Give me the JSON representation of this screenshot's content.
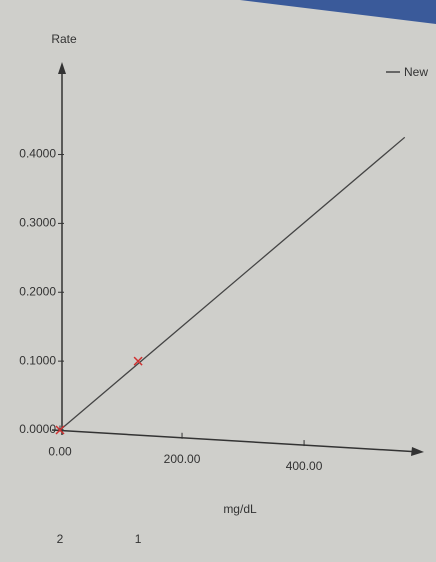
{
  "chart_data": {
    "type": "line",
    "y_label": "Rate",
    "x_label": "mg/dL",
    "xlim": [
      0,
      590
    ],
    "ylim": [
      0,
      0.53
    ],
    "xticks": [
      {
        "value": 0,
        "label": "0.00"
      },
      {
        "value": 200,
        "label": "200.00"
      },
      {
        "value": 400,
        "label": "400.00"
      }
    ],
    "yticks": [
      {
        "value": 0,
        "label": "0.0000"
      },
      {
        "value": 0.1,
        "label": "0.1000"
      },
      {
        "value": 0.2,
        "label": "0.2000"
      },
      {
        "value": 0.3,
        "label": "0.3000"
      },
      {
        "value": 0.4,
        "label": "0.4000"
      }
    ],
    "series": [
      {
        "name": "New",
        "color": "#444444",
        "x": [
          0,
          565
        ],
        "values": [
          0,
          0.425
        ]
      }
    ],
    "points": {
      "color": "#d03030",
      "x": [
        128,
        0
      ],
      "values": [
        0.1,
        0
      ],
      "labels": [
        "1",
        "2"
      ]
    }
  }
}
